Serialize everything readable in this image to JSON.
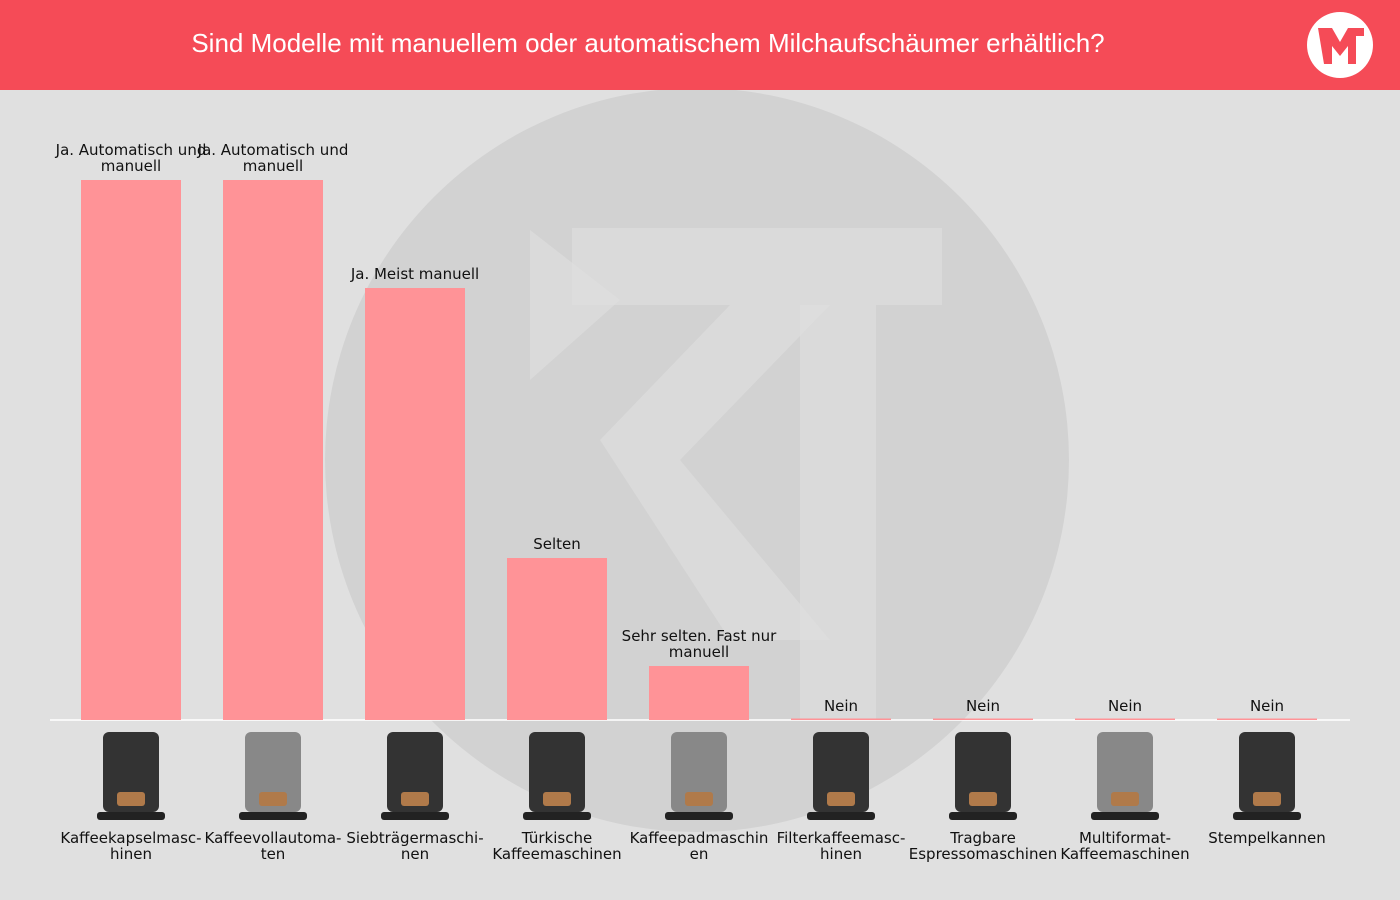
{
  "chart_data": {
    "type": "bar",
    "title": "Sind Modelle mit manuellem oder automatischem Milchaufschäumer erhältlich?",
    "categories": [
      "Kaffeekapselmasc-\nhinen",
      "Kaffeevollautoma-\nten",
      "Siebträgermaschi-\nnen",
      "Türkische\nKaffeemaschinen",
      "Kaffeepadmaschin\nen",
      "Filterkaffeemasc-\nhinen",
      "Tragbare\nEspressomaschinen",
      "Multiformat-\nKaffeemaschinen",
      "Stempelkannen"
    ],
    "values": [
      10,
      10,
      8,
      3,
      1,
      0,
      0,
      0,
      0
    ],
    "value_labels": [
      "Ja. Automatisch und manuell",
      "Ja. Automatisch und manuell",
      "Ja. Meist manuell",
      "Selten",
      "Sehr selten. Fast nur manuell",
      "Nein",
      "Nein",
      "Nein",
      "Nein"
    ],
    "color": "#ff9397",
    "ylim": [
      0,
      10
    ]
  }
}
